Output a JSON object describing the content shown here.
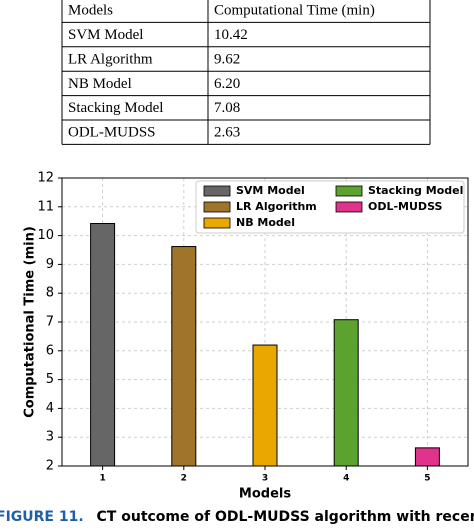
{
  "table": {
    "header": [
      "Models",
      "Computational Time (min)"
    ],
    "rows": [
      [
        "SVM Model",
        "10.42"
      ],
      [
        "LR Algorithm",
        "9.62"
      ],
      [
        "NB Model",
        "6.20"
      ],
      [
        "Stacking Model",
        "7.08"
      ],
      [
        "ODL-MUDSS",
        "2.63"
      ]
    ]
  },
  "chart_data": {
    "type": "bar",
    "xlabel": "Models",
    "ylabel": "Computational Time (min)",
    "categories": [
      "1",
      "2",
      "3",
      "4",
      "5"
    ],
    "series": [
      {
        "name": "SVM Model",
        "color": "#666666",
        "values": [
          10.42,
          null,
          null,
          null,
          null
        ]
      },
      {
        "name": "LR Algorithm",
        "color": "#a0742a",
        "values": [
          null,
          9.62,
          null,
          null,
          null
        ]
      },
      {
        "name": "NB Model",
        "color": "#e8a800",
        "values": [
          null,
          null,
          6.2,
          null,
          null
        ]
      },
      {
        "name": "Stacking Model",
        "color": "#5ca22e",
        "values": [
          null,
          null,
          null,
          7.08,
          null
        ]
      },
      {
        "name": "ODL-MUDSS",
        "color": "#e0338c",
        "values": [
          null,
          null,
          null,
          null,
          2.63
        ]
      }
    ],
    "ylim": [
      2,
      12
    ],
    "yticks": [
      2,
      3,
      4,
      5,
      6,
      7,
      8,
      9,
      10,
      11,
      12
    ],
    "grid": true,
    "legend": "upper right"
  },
  "caption": {
    "label": "FIGURE 11.",
    "text": "CT outcome of ODL-MUDSS algorithm with recent systems."
  }
}
